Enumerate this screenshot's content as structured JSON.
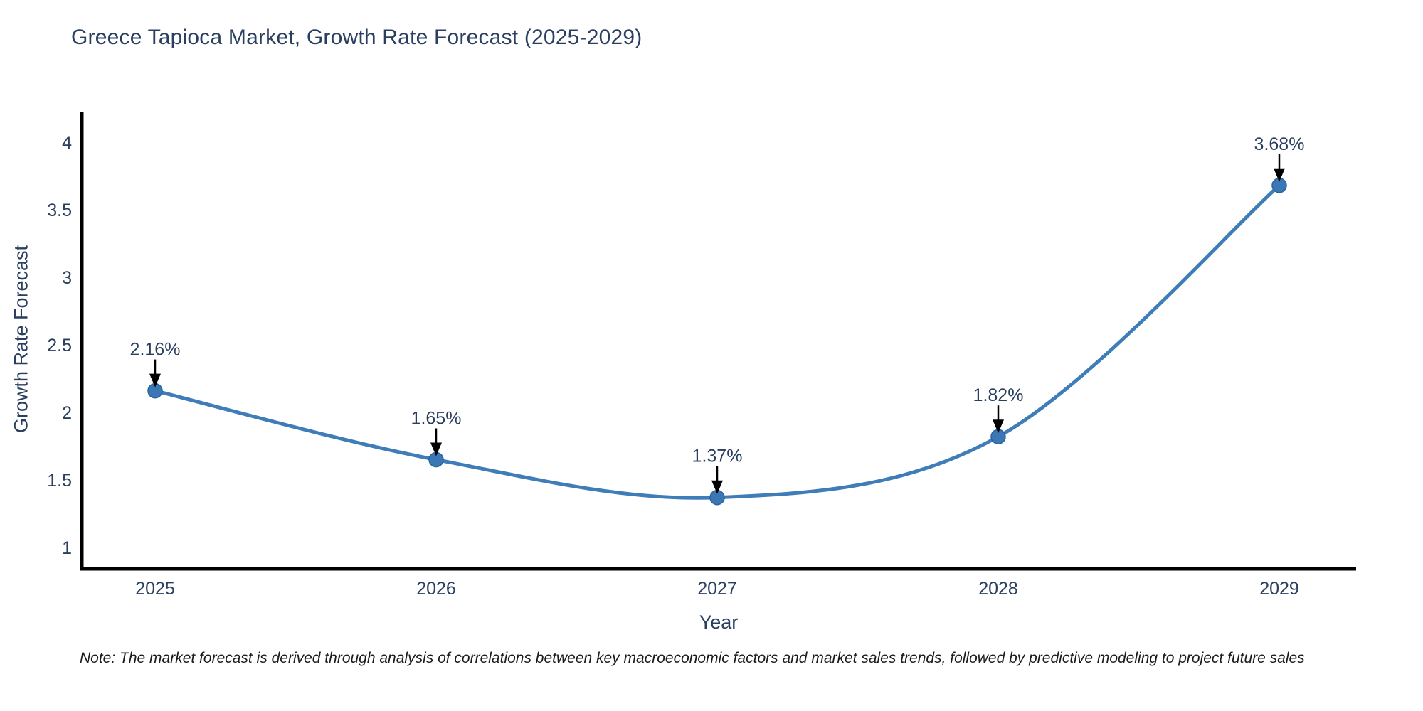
{
  "chart_data": {
    "type": "line",
    "curve": "spline",
    "title": "Greece Tapioca Market, Growth Rate Forecast (2025-2029)",
    "xlabel": "Year",
    "ylabel": "Growth Rate Forecast",
    "x": [
      "2025",
      "2026",
      "2027",
      "2028",
      "2029"
    ],
    "values": [
      2.16,
      1.65,
      1.37,
      1.82,
      3.68
    ],
    "point_labels": [
      "2.16%",
      "1.65%",
      "1.37%",
      "1.82%",
      "3.68%"
    ],
    "ylim": [
      1,
      4
    ],
    "yticks": [
      4,
      3.5,
      3,
      2.5,
      2,
      1.5,
      1
    ],
    "ytick_labels": [
      "4",
      "3.5",
      "3",
      "2.5",
      "2",
      "1.5",
      "1"
    ],
    "xtick_labels": [
      "2025",
      "2026",
      "2027",
      "2028",
      "2029"
    ],
    "grid": false,
    "legend": "none",
    "annotation_arrows": "down",
    "colors": {
      "line": "#3f7db8",
      "marker": "#3a77b4",
      "marker_edge": "#2d639b",
      "axis": "#000000",
      "text": "#2a3f5f",
      "annotation_arrow": "#000000",
      "note": "#1a1a1a"
    }
  },
  "note": {
    "text": "Note: The market forecast is derived through analysis of correlations between key macroeconomic factors and market sales trends, followed by predictive modeling to project future sales"
  }
}
